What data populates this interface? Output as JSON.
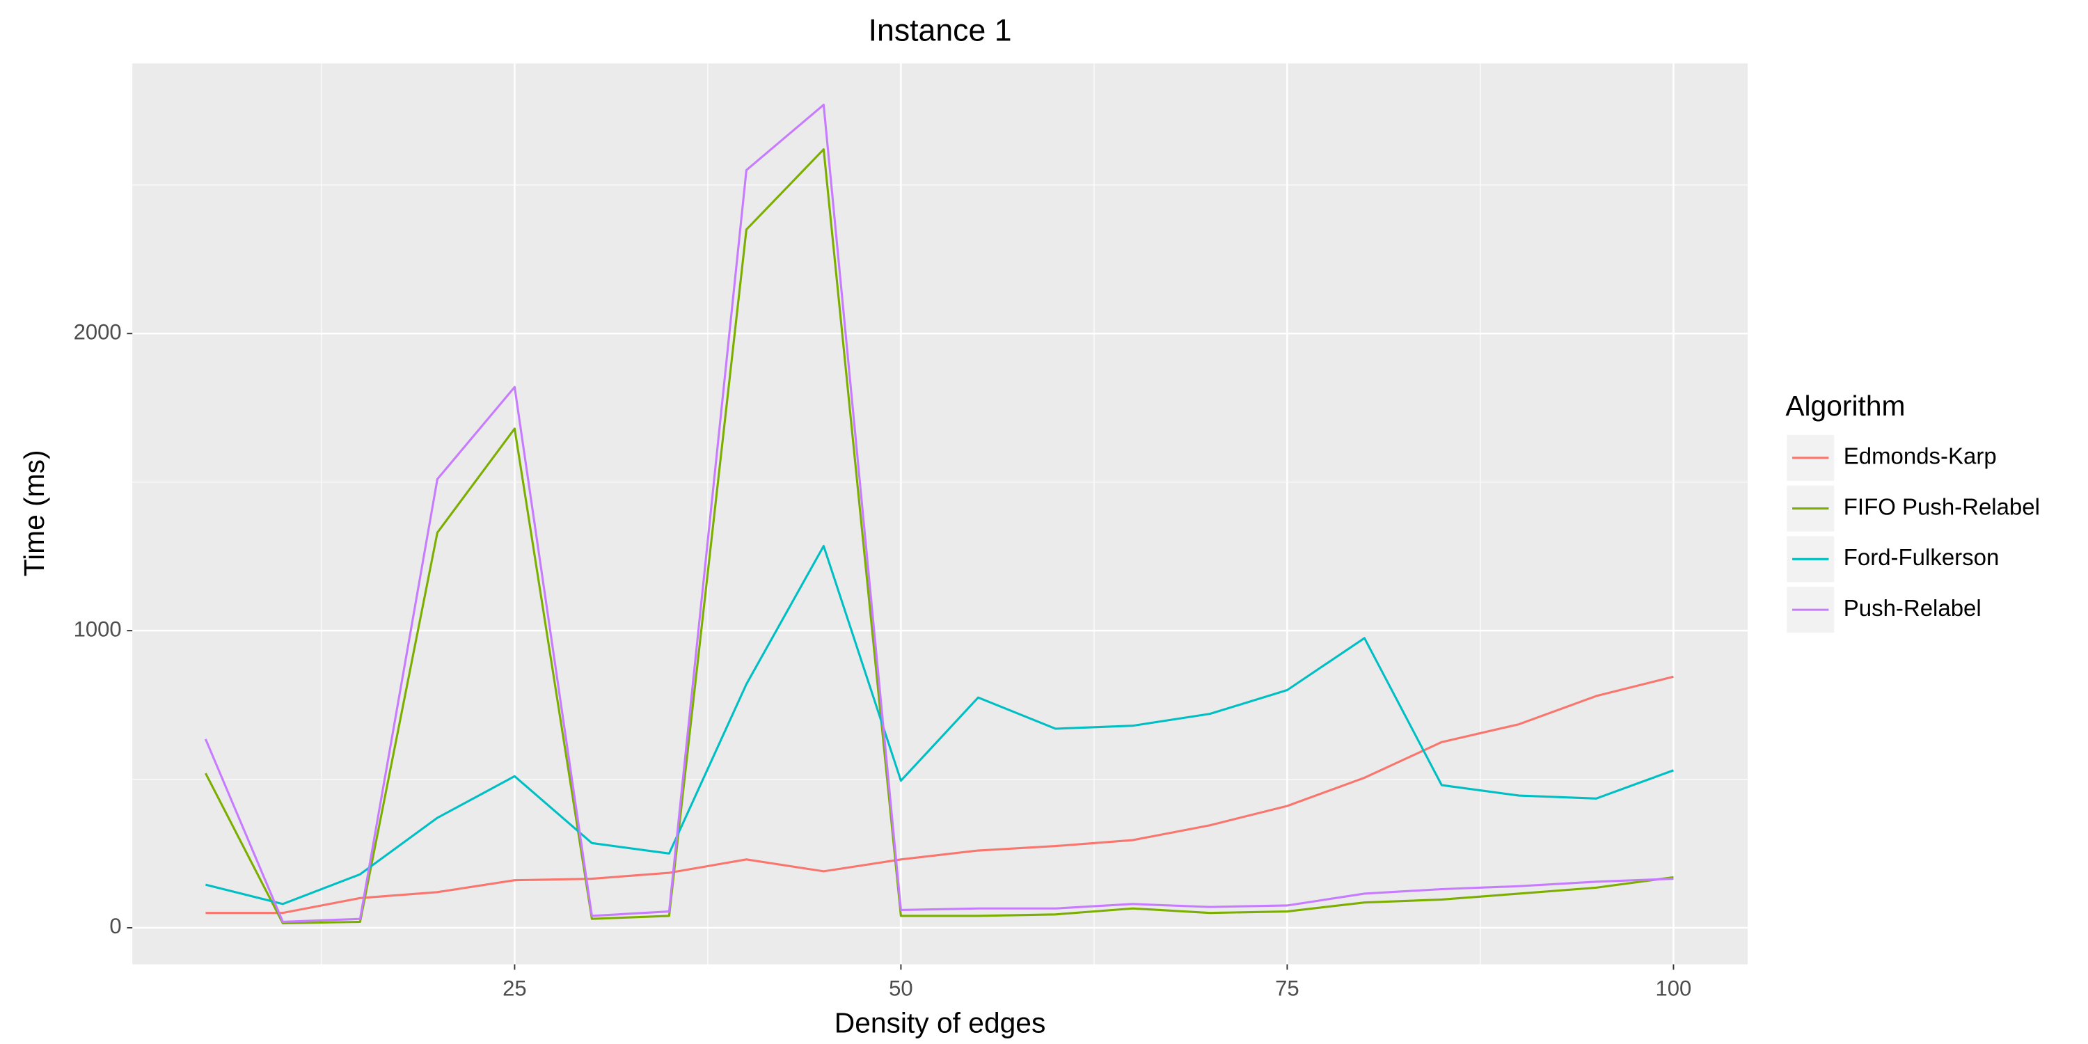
{
  "chart_data": {
    "type": "line",
    "title": "Instance 1",
    "x_label": "Density of edges",
    "y_label": "Time (ms)",
    "legend_title": "Algorithm",
    "legend_position": "right",
    "grid": true,
    "background": "#ebebeb",
    "x": [
      5,
      10,
      15,
      20,
      25,
      30,
      35,
      40,
      45,
      50,
      55,
      60,
      65,
      70,
      75,
      80,
      85,
      90,
      95,
      100
    ],
    "xlim": [
      0.26,
      104.8
    ],
    "xticks": [
      25,
      50,
      75,
      100
    ],
    "ylim": [
      -123,
      2909
    ],
    "yticks": [
      0,
      1000,
      2000
    ],
    "series": [
      {
        "name": "Edmonds-Karp",
        "color": "#f8766d",
        "values": [
          50,
          50,
          100,
          120,
          160,
          165,
          185,
          230,
          190,
          230,
          260,
          275,
          295,
          345,
          410,
          505,
          625,
          685,
          780,
          845
        ]
      },
      {
        "name": "FIFO Push-Relabel",
        "color": "#7cae00",
        "values": [
          520,
          15,
          20,
          1330,
          1680,
          30,
          40,
          2350,
          2620,
          40,
          40,
          45,
          65,
          50,
          55,
          85,
          95,
          115,
          135,
          170
        ]
      },
      {
        "name": "Ford-Fulkerson",
        "color": "#00bfc4",
        "values": [
          145,
          80,
          180,
          370,
          510,
          285,
          250,
          820,
          1285,
          495,
          775,
          670,
          680,
          720,
          800,
          975,
          480,
          445,
          435,
          530
        ]
      },
      {
        "name": "Push-Relabel",
        "color": "#c77cff",
        "values": [
          635,
          20,
          30,
          1510,
          1820,
          40,
          55,
          2550,
          2770,
          60,
          65,
          65,
          80,
          70,
          75,
          115,
          130,
          140,
          155,
          165
        ]
      }
    ]
  }
}
